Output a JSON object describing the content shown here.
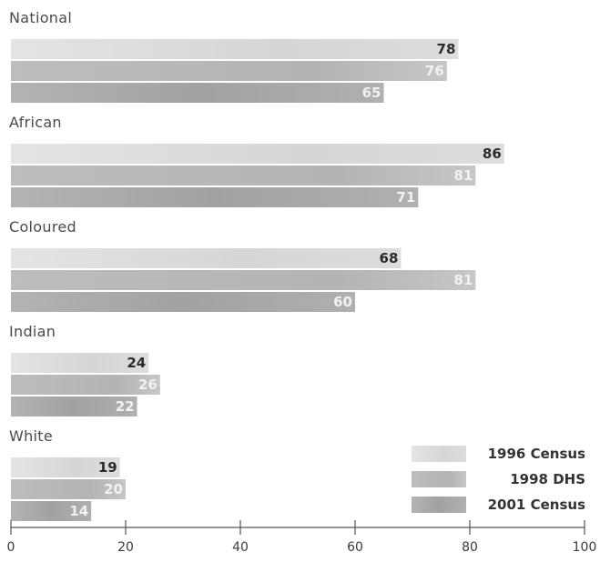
{
  "chart_data": {
    "type": "bar",
    "orientation": "horizontal",
    "categories": [
      "National",
      "African",
      "Coloured",
      "Indian",
      "White"
    ],
    "series": [
      {
        "name": "1996 Census",
        "values": [
          78,
          86,
          68,
          24,
          19
        ],
        "color": "#d9d9d9"
      },
      {
        "name": "1998 DHS",
        "values": [
          76,
          81,
          81,
          26,
          20
        ],
        "color": "#c2c2c2"
      },
      {
        "name": "2001 Census",
        "values": [
          65,
          71,
          60,
          22,
          14
        ],
        "color": "#a9a9a9"
      }
    ],
    "x_ticks": [
      0,
      20,
      40,
      60,
      80,
      100
    ],
    "xlim": [
      0,
      100
    ],
    "title": "",
    "xlabel": "",
    "ylabel": "",
    "grid": false,
    "legend_position": "bottom-right",
    "value_label_colors": [
      "#2b2b2b",
      "#f2f2f2",
      "#f2f2f2"
    ]
  }
}
